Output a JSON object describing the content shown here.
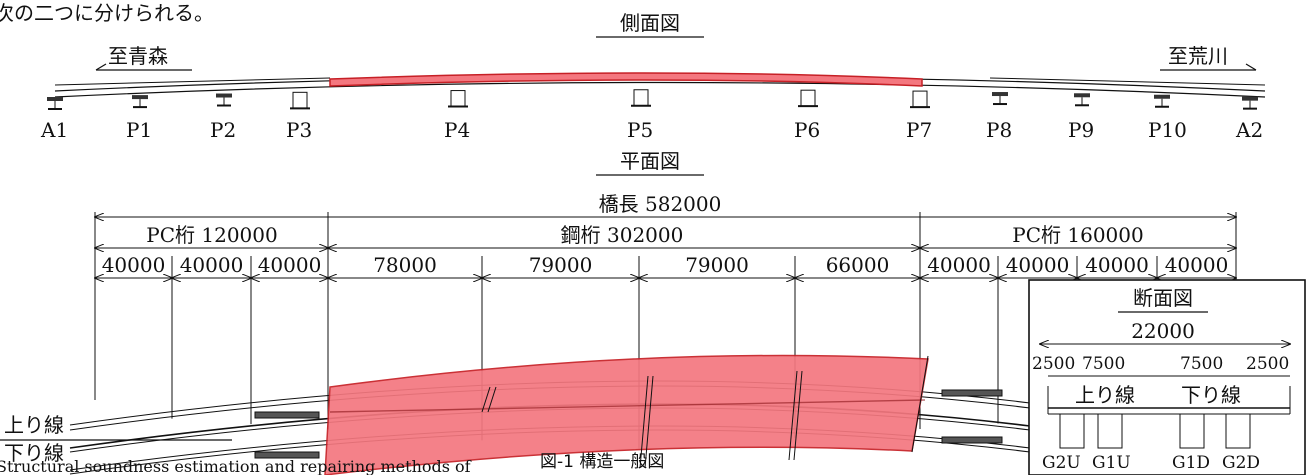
{
  "top_text": "次の二つに分けられる。",
  "side_view": {
    "title": "側面図",
    "left_dir": "至青森",
    "right_dir": "至荒川",
    "piers": [
      "A1",
      "P1",
      "P2",
      "P3",
      "P4",
      "P5",
      "P6",
      "P7",
      "P8",
      "P9",
      "P10",
      "A2"
    ]
  },
  "plan_view": {
    "title": "平面図",
    "bridge_length": "橋長 582000",
    "segments": [
      {
        "label": "PC桁 120000"
      },
      {
        "label": "鋼桁 302000"
      },
      {
        "label": "PC桁 160000"
      }
    ],
    "spans": [
      "40000",
      "40000",
      "40000",
      "78000",
      "79000",
      "79000",
      "66000",
      "40000",
      "40000",
      "40000",
      "40000"
    ],
    "lines": {
      "up": "上り線",
      "down": "下り線"
    }
  },
  "section_view": {
    "title": "断面図",
    "width": "22000",
    "parts": [
      "2500",
      "7500",
      "7500",
      "2500"
    ],
    "up_label": "上り線",
    "down_label": "下り線",
    "girders": [
      "G2U",
      "G1U",
      "G1D",
      "G2D"
    ]
  },
  "caption": "図-1 構造一般図",
  "footnote": "Structural soundness estimation and repairing methods of",
  "colors": {
    "highlight_fill": "#f4777f",
    "highlight_stroke": "#c62026"
  }
}
